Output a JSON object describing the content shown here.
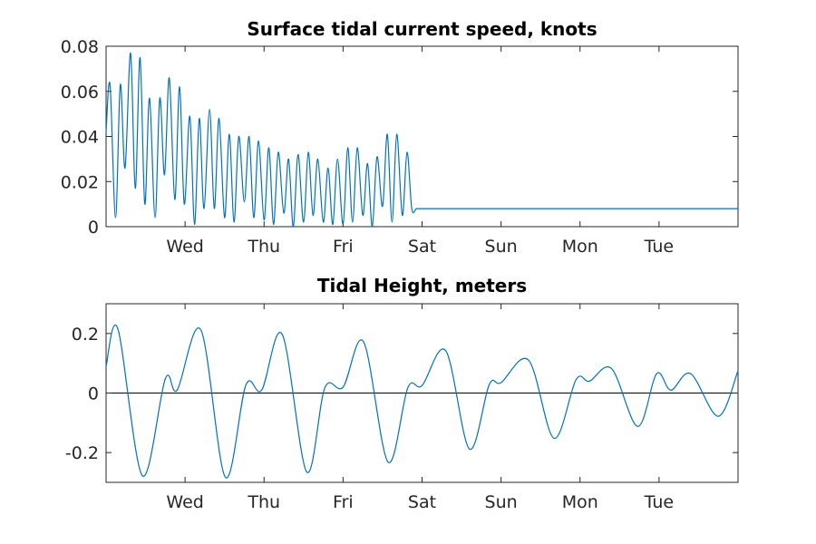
{
  "window": {
    "width": 900,
    "height": 600,
    "background": "#ffffff"
  },
  "chart_data": [
    {
      "type": "line",
      "title": "Surface tidal current speed, knots",
      "xlabel": "",
      "ylabel": "",
      "xlim": [
        0,
        8
      ],
      "ylim": [
        0,
        0.08
      ],
      "x_ticks": [
        {
          "value": 1,
          "label": "Wed"
        },
        {
          "value": 2,
          "label": "Thu"
        },
        {
          "value": 3,
          "label": "Fri"
        },
        {
          "value": 4,
          "label": "Sat"
        },
        {
          "value": 5,
          "label": "Sun"
        },
        {
          "value": 6,
          "label": "Mon"
        },
        {
          "value": 7,
          "label": "Tue"
        }
      ],
      "y_ticks": [
        {
          "value": 0,
          "label": "0"
        },
        {
          "value": 0.02,
          "label": "0.02"
        },
        {
          "value": 0.04,
          "label": "0.04"
        },
        {
          "value": 0.06,
          "label": "0.06"
        },
        {
          "value": 0.08,
          "label": "0.08"
        }
      ],
      "grid": false,
      "line_color": "#0072BD",
      "series": [
        {
          "x": [
            0.0,
            0.05,
            0.12,
            0.18,
            0.24,
            0.31,
            0.37,
            0.43,
            0.49,
            0.55,
            0.62,
            0.68,
            0.74,
            0.8,
            0.87,
            0.93,
            0.99,
            1.06,
            1.12,
            1.18,
            1.24,
            1.31,
            1.37,
            1.43,
            1.5,
            1.56,
            1.62,
            1.68,
            1.75,
            1.81,
            1.87,
            1.93,
            2.0,
            2.06,
            2.12,
            2.18,
            2.25,
            2.31,
            2.37,
            2.43,
            2.5,
            2.56,
            2.62,
            2.68,
            2.75,
            2.81,
            2.87,
            2.93,
            3.0,
            3.06,
            3.12,
            3.18,
            3.25,
            3.31,
            3.37,
            3.43,
            3.5,
            3.56,
            3.62,
            3.68,
            3.75,
            3.81,
            3.87,
            3.93,
            4.0,
            4.06,
            4.12,
            4.18,
            4.25,
            4.31,
            4.37,
            4.43,
            4.5,
            4.56,
            4.62,
            4.68,
            4.75,
            4.81,
            4.87,
            4.93,
            5.0,
            5.06,
            5.12,
            5.18,
            5.25,
            5.31,
            5.37,
            5.43,
            5.5,
            5.56,
            5.62,
            5.68,
            5.75,
            5.81,
            5.87,
            5.93,
            6.0,
            6.06,
            6.12,
            6.18,
            6.25,
            6.31,
            6.37,
            6.43,
            6.5,
            6.56,
            6.62,
            6.68,
            6.75,
            6.81,
            6.87,
            6.93,
            7.0,
            7.06,
            7.12,
            7.18,
            7.25,
            7.31,
            7.37,
            7.43,
            7.5,
            7.56,
            7.62,
            7.68,
            7.75,
            7.81,
            7.87,
            7.93,
            8.0
          ],
          "y": [
            0.042,
            0.063,
            0.004,
            0.063,
            0.026,
            0.077,
            0.017,
            0.075,
            0.01,
            0.057,
            0.004,
            0.057,
            0.023,
            0.066,
            0.012,
            0.062,
            0.01,
            0.049,
            0.001,
            0.048,
            0.008,
            0.052,
            0.008,
            0.048,
            0.004,
            0.041,
            0.002,
            0.04,
            0.011,
            0.04,
            0.004,
            0.038,
            0.003,
            0.035,
            0.001,
            0.033,
            0.006,
            0.03,
            0.0,
            0.032,
            0.002,
            0.033,
            0.005,
            0.03,
            0.002,
            0.026,
            0.001,
            0.03,
            0.001,
            0.035,
            0.002,
            0.035,
            0.005,
            0.028,
            0.0,
            0.031,
            0.009,
            0.041,
            0.002,
            0.041,
            0.005,
            0.033,
            0.008,
            0.008,
            0.008,
            0.008,
            0.008,
            0.008,
            0.008,
            0.008,
            0.008,
            0.008,
            0.008,
            0.008,
            0.008,
            0.008,
            0.008,
            0.008,
            0.008,
            0.008,
            0.008,
            0.008,
            0.008,
            0.008,
            0.008,
            0.008,
            0.008,
            0.008,
            0.008,
            0.008,
            0.008,
            0.008,
            0.008,
            0.008,
            0.008,
            0.008,
            0.008,
            0.008,
            0.008,
            0.008,
            0.008,
            0.008,
            0.008,
            0.008,
            0.008,
            0.008,
            0.008,
            0.008,
            0.008,
            0.008,
            0.008,
            0.008,
            0.008,
            0.008,
            0.008,
            0.008,
            0.008,
            0.008,
            0.008,
            0.008,
            0.008,
            0.008,
            0.008,
            0.008,
            0.008,
            0.008,
            0.008,
            0.008,
            0.008
          ]
        }
      ]
    },
    {
      "type": "line",
      "title": "Tidal Height, meters",
      "xlabel": "",
      "ylabel": "",
      "xlim": [
        0,
        8
      ],
      "ylim": [
        -0.3,
        0.3
      ],
      "x_ticks": [
        {
          "value": 1,
          "label": "Wed"
        },
        {
          "value": 2,
          "label": "Thu"
        },
        {
          "value": 3,
          "label": "Fri"
        },
        {
          "value": 4,
          "label": "Sat"
        },
        {
          "value": 5,
          "label": "Sun"
        },
        {
          "value": 6,
          "label": "Mon"
        },
        {
          "value": 7,
          "label": "Tue"
        }
      ],
      "y_ticks": [
        {
          "value": -0.2,
          "label": "-0.2"
        },
        {
          "value": 0,
          "label": "0"
        },
        {
          "value": 0.2,
          "label": "0.2"
        }
      ],
      "grid": false,
      "zero_line": true,
      "line_color": "#0072BD",
      "series": [
        {
          "x": [
            0.0,
            0.15,
            0.46,
            0.75,
            0.9,
            1.2,
            1.51,
            1.77,
            1.97,
            2.23,
            2.54,
            2.77,
            3.0,
            3.26,
            3.57,
            3.82,
            4.0,
            4.3,
            4.6,
            4.85,
            5.0,
            5.35,
            5.67,
            5.95,
            6.12,
            6.4,
            6.73,
            6.97,
            7.15,
            7.4,
            7.75,
            8.0
          ],
          "y": [
            0.09,
            0.215,
            -0.278,
            0.048,
            0.01,
            0.212,
            -0.283,
            0.027,
            0.01,
            0.197,
            -0.265,
            0.018,
            0.02,
            0.172,
            -0.232,
            0.018,
            0.025,
            0.142,
            -0.188,
            0.028,
            0.035,
            0.11,
            -0.152,
            0.045,
            0.04,
            0.082,
            -0.112,
            0.065,
            0.01,
            0.065,
            -0.078,
            0.075
          ]
        }
      ]
    }
  ]
}
